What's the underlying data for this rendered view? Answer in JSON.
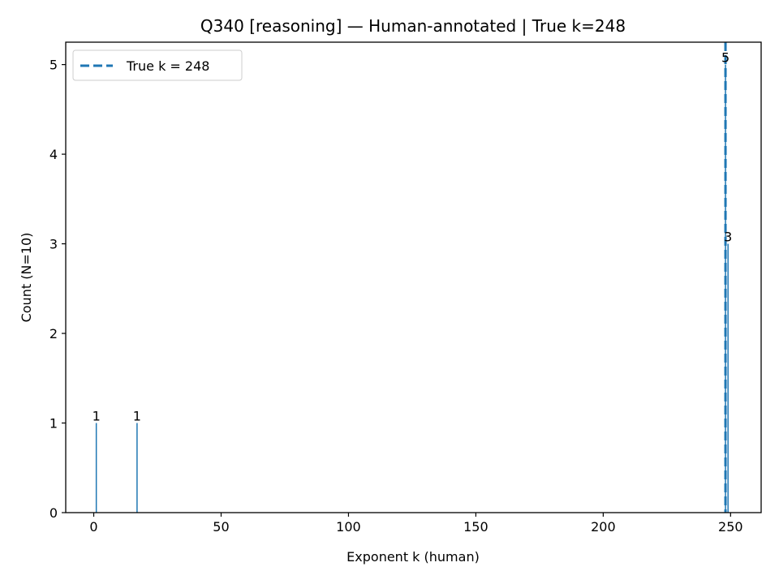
{
  "chart_data": {
    "type": "bar",
    "title": "Q340 [reasoning] — Human-annotated | True k=248",
    "xlabel": "Exponent k (human)",
    "ylabel": "Count (N=10)",
    "xlim": [
      -11,
      262
    ],
    "ylim": [
      0,
      5.25
    ],
    "x_ticks": [
      0,
      50,
      100,
      150,
      200,
      250
    ],
    "y_ticks": [
      0,
      1,
      2,
      3,
      4,
      5
    ],
    "bar_color": "#1f77b4",
    "bars": [
      {
        "x": 1,
        "value": 1
      },
      {
        "x": 17,
        "value": 1
      },
      {
        "x": 248,
        "value": 5
      },
      {
        "x": 249,
        "value": 3
      }
    ],
    "reference_line": {
      "x": 248,
      "label": "True k = 248",
      "color": "#1f77b4",
      "style": "dashed"
    },
    "legend": {
      "position": "top-left",
      "entries": [
        "True k = 248"
      ]
    },
    "grid": false
  }
}
